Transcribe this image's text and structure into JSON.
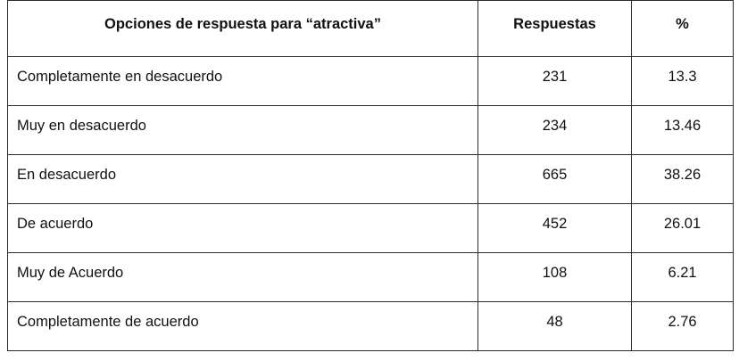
{
  "table": {
    "headers": [
      "Opciones de respuesta para “atractiva”",
      "Respuestas",
      "%"
    ],
    "rows": [
      {
        "option": "Completamente en desacuerdo",
        "responses": "231",
        "percent": "13.3"
      },
      {
        "option": "Muy en desacuerdo",
        "responses": "234",
        "percent": "13.46"
      },
      {
        "option": "En desacuerdo",
        "responses": "665",
        "percent": "38.26"
      },
      {
        "option": "De acuerdo",
        "responses": "452",
        "percent": "26.01"
      },
      {
        "option": "Muy de Acuerdo",
        "responses": "108",
        "percent": "6.21"
      },
      {
        "option": "Completamente de acuerdo",
        "responses": "48",
        "percent": "2.76"
      }
    ]
  }
}
